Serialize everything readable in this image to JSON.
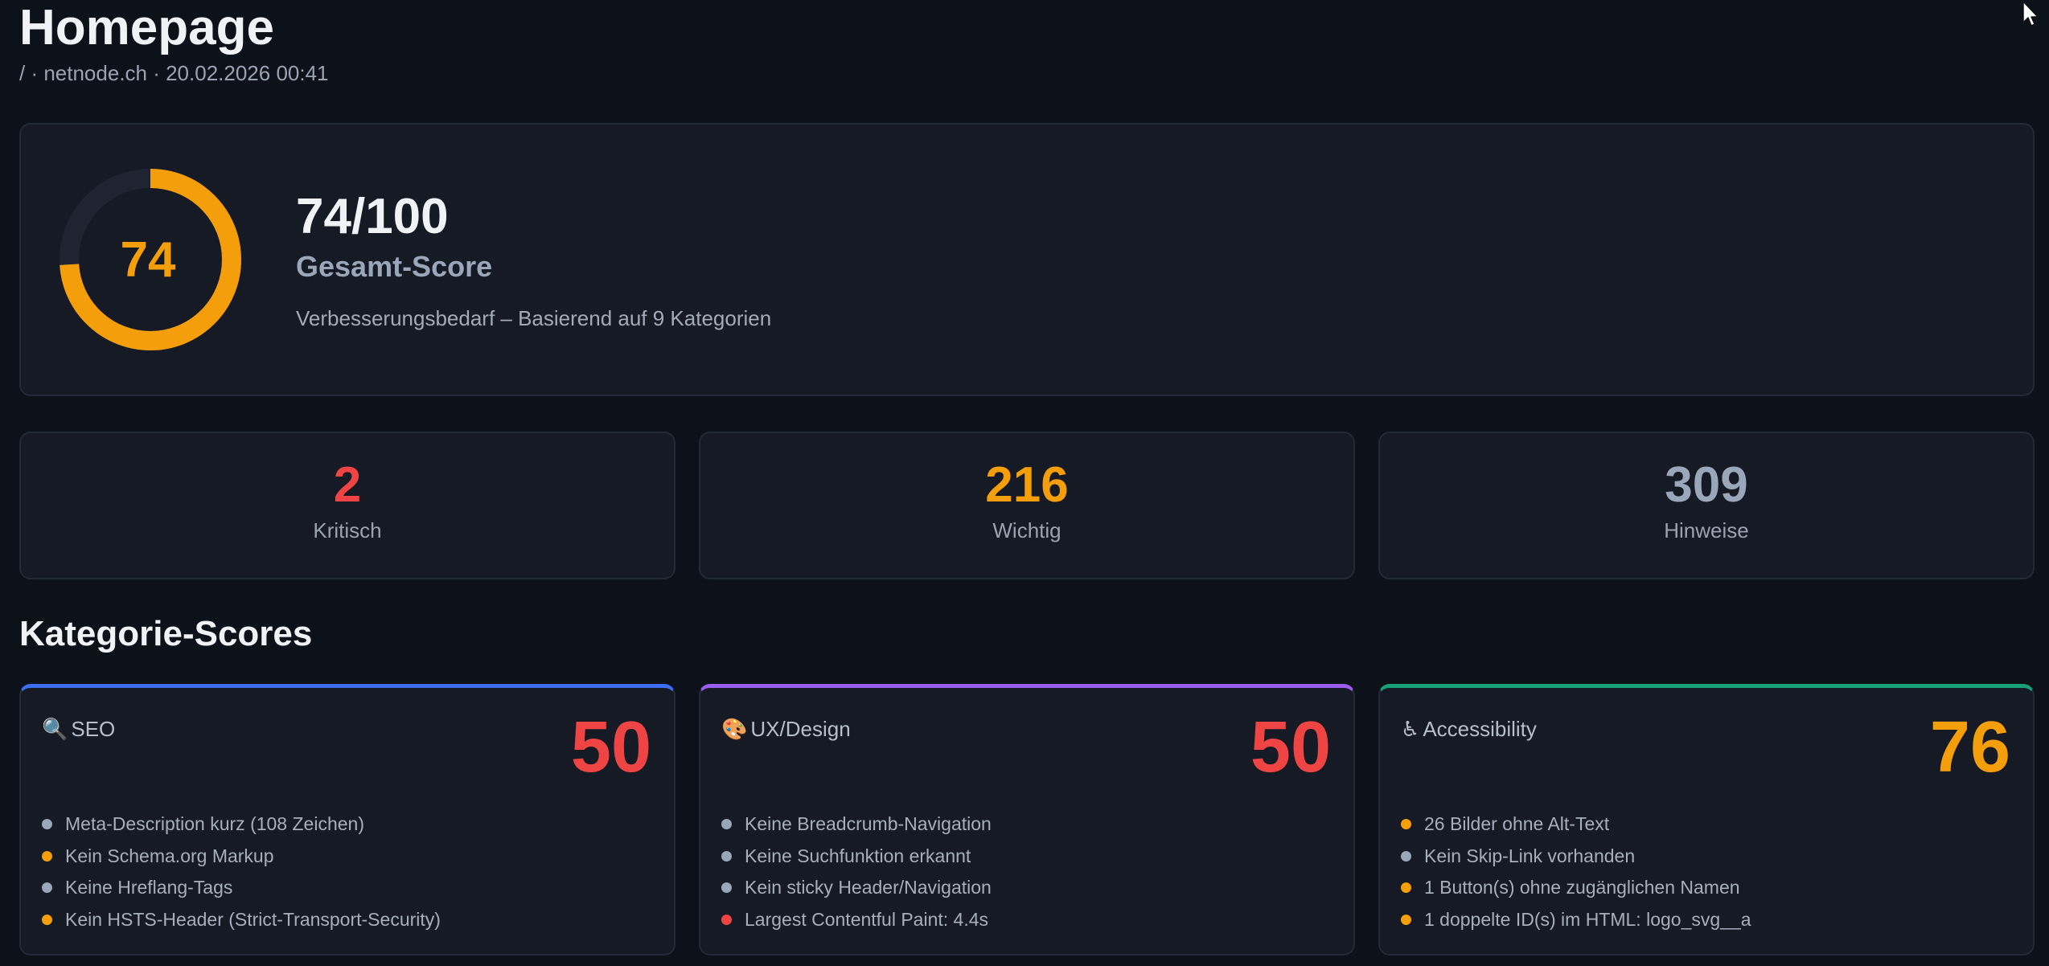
{
  "page": {
    "title": "Homepage",
    "subtitle": "/ · netnode.ch · 20.02.2026 00:41"
  },
  "overall": {
    "score": 74,
    "score_display": "74",
    "score_text": "74/100",
    "label": "Gesamt-Score",
    "description": "Verbesserungsbedarf – Basierend auf 9 Kategorien",
    "color": "#f59e0b",
    "track_color": "#1f2433"
  },
  "stats": [
    {
      "value": "2",
      "label": "Kritisch",
      "color": "#ef4444"
    },
    {
      "value": "216",
      "label": "Wichtig",
      "color": "#f59e0b"
    },
    {
      "value": "309",
      "label": "Hinweise",
      "color": "#9aa6ba"
    }
  ],
  "section_title": "Kategorie-Scores",
  "categories": [
    {
      "icon": "🔍",
      "icon_name": "magnifier-icon",
      "name": "SEO",
      "score": "50",
      "score_color": "#ef4444",
      "accent": "#3b6ff0",
      "issues": [
        {
          "text": "Meta-Description kurz (108 Zeichen)",
          "severity": "hint",
          "color": "#9aa6ba"
        },
        {
          "text": "Kein Schema.org Markup",
          "severity": "important",
          "color": "#f59e0b"
        },
        {
          "text": "Keine Hreflang-Tags",
          "severity": "hint",
          "color": "#9aa6ba"
        },
        {
          "text": "Kein HSTS-Header (Strict-Transport-Security)",
          "severity": "important",
          "color": "#f59e0b"
        }
      ]
    },
    {
      "icon": "🎨",
      "icon_name": "palette-icon",
      "name": "UX/Design",
      "score": "50",
      "score_color": "#ef4444",
      "accent": "#9b5cf0",
      "issues": [
        {
          "text": "Keine Breadcrumb-Navigation",
          "severity": "hint",
          "color": "#9aa6ba"
        },
        {
          "text": "Keine Suchfunktion erkannt",
          "severity": "hint",
          "color": "#9aa6ba"
        },
        {
          "text": "Kein sticky Header/Navigation",
          "severity": "hint",
          "color": "#9aa6ba"
        },
        {
          "text": "Largest Contentful Paint: 4.4s",
          "severity": "critical",
          "color": "#ef4444"
        }
      ]
    },
    {
      "icon": "♿",
      "icon_name": "accessibility-icon",
      "name": "Accessibility",
      "score": "76",
      "score_color": "#f59e0b",
      "accent": "#17a07a",
      "issues": [
        {
          "text": "26 Bilder ohne Alt-Text",
          "severity": "important",
          "color": "#f59e0b"
        },
        {
          "text": "Kein Skip-Link vorhanden",
          "severity": "hint",
          "color": "#9aa6ba"
        },
        {
          "text": "1 Button(s) ohne zugänglichen Namen",
          "severity": "important",
          "color": "#f59e0b"
        },
        {
          "text": "1 doppelte ID(s) im HTML: logo_svg__a",
          "severity": "important",
          "color": "#f59e0b"
        }
      ]
    }
  ]
}
